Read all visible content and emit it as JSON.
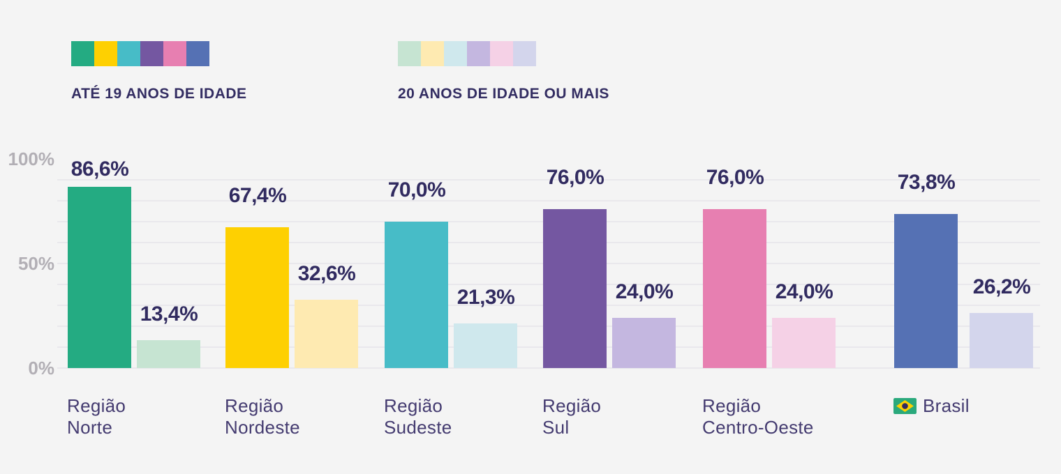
{
  "background_color": "#f4f4f4",
  "colors": {
    "label_text": "#312b60",
    "category_text": "#443b70",
    "axis_text": "#b2afb5",
    "gridline": "#e9e8ec",
    "flag_green": "#2aa97c",
    "flag_yellow": "#fed001",
    "flag_navy": "#312b60"
  },
  "legend": [
    {
      "label": "ATÉ 19 ANOS DE IDADE",
      "swatches": [
        "#24ab82",
        "#fed001",
        "#47bcc7",
        "#7457a1",
        "#e77fb1",
        "#5571b4"
      ]
    },
    {
      "label": "20 ANOS DE IDADE OU MAIS",
      "swatches": [
        "#c6e4d2",
        "#feeab1",
        "#cfe8ed",
        "#c4b7e0",
        "#f5d1e6",
        "#d3d5ec"
      ]
    }
  ],
  "chart_data": {
    "type": "bar",
    "title": "",
    "xlabel": "",
    "ylabel": "",
    "ylim": [
      0,
      100
    ],
    "grid": "horizontal, every 10%, from 0% to 90%",
    "legend_position": "top",
    "y_ticks": [
      {
        "label": "100%",
        "value": 100
      },
      {
        "label": "50%",
        "value": 50
      },
      {
        "label": "0%",
        "value": 0
      }
    ],
    "categories": [
      "Região Norte",
      "Região Nordeste",
      "Região Sudeste",
      "Região Sul",
      "Região Centro-Oeste",
      "Brasil"
    ],
    "categories_display": [
      {
        "lines": [
          "Região",
          "Norte"
        ]
      },
      {
        "lines": [
          "Região",
          "Nordeste"
        ]
      },
      {
        "lines": [
          "Região",
          "Sudeste"
        ]
      },
      {
        "lines": [
          "Região",
          "Sul"
        ]
      },
      {
        "lines": [
          "Região",
          "Centro-Oeste"
        ]
      },
      {
        "lines": [
          "Brasil"
        ],
        "flag_icon": "brazil-flag"
      }
    ],
    "series": [
      {
        "name": "ATÉ 19 ANOS DE IDADE",
        "values": [
          86.6,
          67.4,
          70.0,
          76.0,
          76.0,
          73.8
        ],
        "value_labels": [
          "86,6%",
          "67,4%",
          "70,0%",
          "76,0%",
          "76,0%",
          "73,8%"
        ],
        "colors": [
          "#24ab82",
          "#fed001",
          "#47bcc7",
          "#7457a1",
          "#e77fb1",
          "#5571b4"
        ]
      },
      {
        "name": "20 ANOS DE IDADE OU MAIS",
        "values": [
          13.4,
          32.6,
          21.3,
          24.0,
          24.0,
          26.2
        ],
        "value_labels": [
          "13,4%",
          "32,6%",
          "21,3%",
          "24,0%",
          "24,0%",
          "26,2%"
        ],
        "colors": [
          "#c6e4d2",
          "#feeab1",
          "#cfe8ed",
          "#c4b7e0",
          "#f5d1e6",
          "#d3d5ec"
        ]
      }
    ]
  }
}
